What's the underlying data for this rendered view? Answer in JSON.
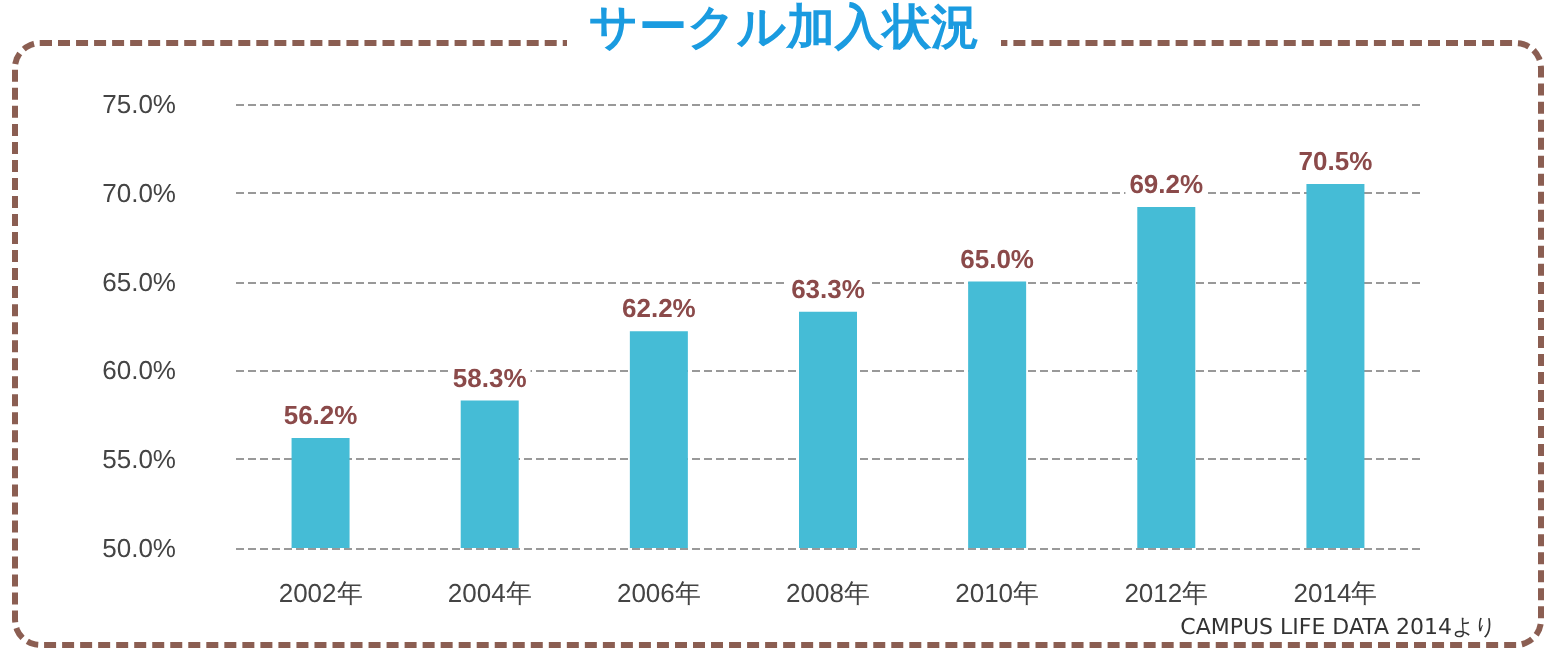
{
  "chart_data": {
    "type": "bar",
    "title": "サークル加入状況",
    "categories": [
      "2002年",
      "2004年",
      "2006年",
      "2008年",
      "2010年",
      "2012年",
      "2014年"
    ],
    "values": [
      56.2,
      58.3,
      62.2,
      63.3,
      65.0,
      69.2,
      70.5
    ],
    "value_labels": [
      "56.2%",
      "58.3%",
      "62.2%",
      "63.3%",
      "65.0%",
      "69.2%",
      "70.5%"
    ],
    "color": "#45bcd6",
    "ylim": [
      50,
      75
    ],
    "yticks": [
      {
        "value": 50,
        "label": "50.0%"
      },
      {
        "value": 55,
        "label": "55.0%"
      },
      {
        "value": 60,
        "label": "60.0%"
      },
      {
        "value": 65,
        "label": "65.0%"
      },
      {
        "value": 70,
        "label": "70.0%"
      },
      {
        "value": 75,
        "label": "75.0%"
      }
    ],
    "grid": "y",
    "annotations": [
      "CAMPUS LIFE DATA 2014より"
    ]
  }
}
